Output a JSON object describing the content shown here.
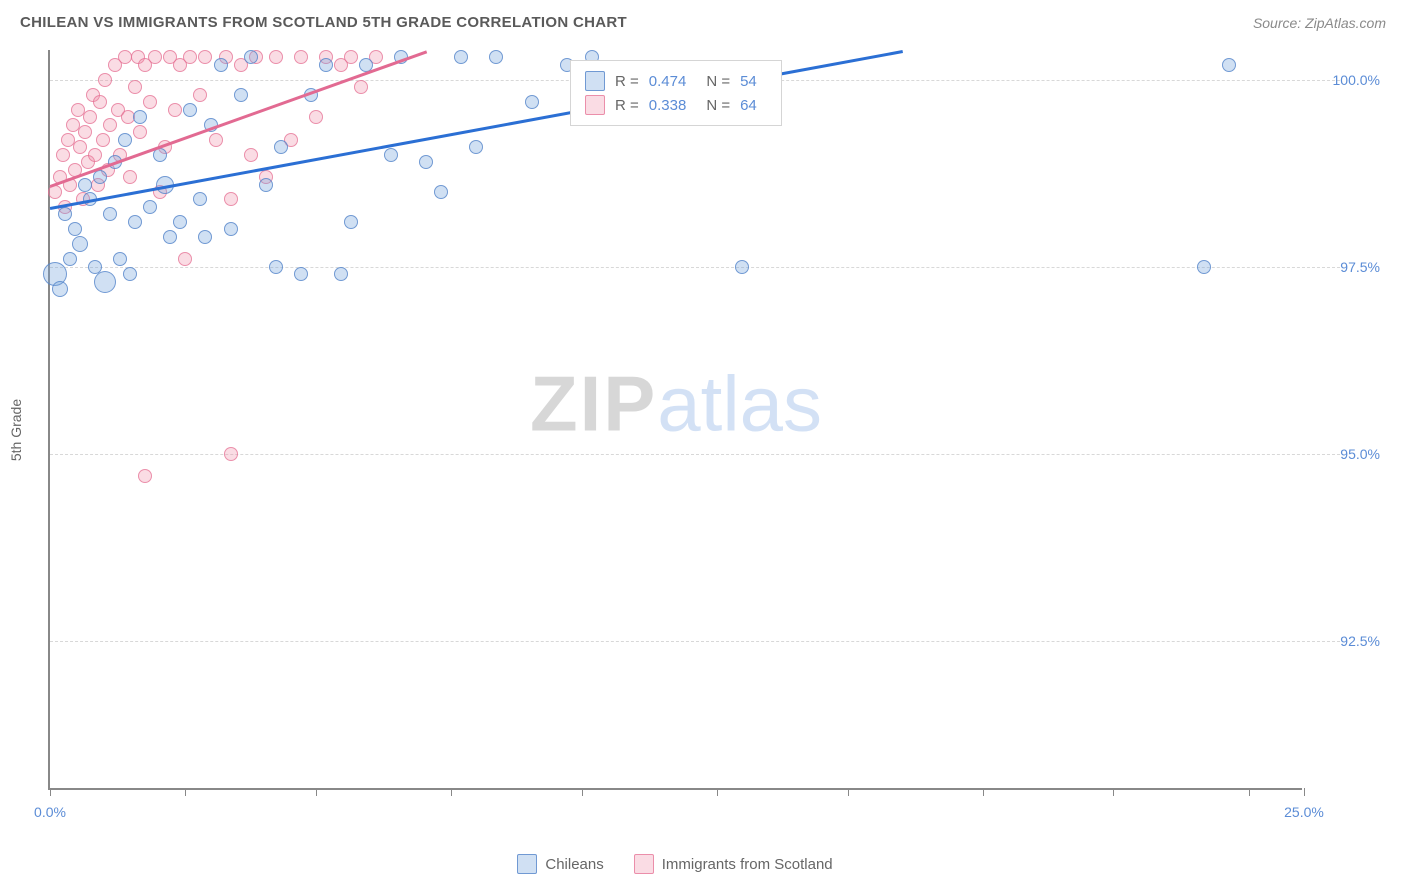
{
  "header": {
    "title": "CHILEAN VS IMMIGRANTS FROM SCOTLAND 5TH GRADE CORRELATION CHART",
    "source_prefix": "Source: ",
    "source_name": "ZipAtlas.com"
  },
  "watermark": {
    "zip": "ZIP",
    "atlas": "atlas"
  },
  "chart": {
    "type": "scatter",
    "ylabel": "5th Grade",
    "background_color": "#ffffff",
    "grid_color": "#d8d8d8",
    "axis_color": "#888888",
    "xlim": [
      0.0,
      25.0
    ],
    "ylim": [
      90.5,
      100.4
    ],
    "ytick_values": [
      92.5,
      95.0,
      97.5,
      100.0
    ],
    "ytick_labels": [
      "92.5%",
      "95.0%",
      "97.5%",
      "100.0%"
    ],
    "xtick_values": [
      0.0,
      2.7,
      5.3,
      8.0,
      10.6,
      13.3,
      15.9,
      18.6,
      21.2,
      23.9,
      25.0
    ],
    "xtick_labels_shown": {
      "0": "0.0%",
      "10": "25.0%"
    },
    "label_color": "#5b8cd6",
    "label_fontsize": 14,
    "series": {
      "blue": {
        "label": "Chileans",
        "fill": "rgba(120,165,220,0.35)",
        "stroke": "rgba(80,130,200,0.75)",
        "trend_color": "#2b6fd4",
        "R": "0.474",
        "N": "54",
        "trend": {
          "x1": 0.0,
          "y1": 98.3,
          "x2": 17.0,
          "y2": 100.4
        },
        "points": [
          {
            "x": 0.1,
            "y": 97.4,
            "r": 12
          },
          {
            "x": 0.2,
            "y": 97.2,
            "r": 8
          },
          {
            "x": 0.3,
            "y": 98.2,
            "r": 7
          },
          {
            "x": 0.4,
            "y": 97.6,
            "r": 7
          },
          {
            "x": 0.5,
            "y": 98.0,
            "r": 7
          },
          {
            "x": 0.6,
            "y": 97.8,
            "r": 8
          },
          {
            "x": 0.7,
            "y": 98.6,
            "r": 7
          },
          {
            "x": 0.8,
            "y": 98.4,
            "r": 7
          },
          {
            "x": 0.9,
            "y": 97.5,
            "r": 7
          },
          {
            "x": 1.0,
            "y": 98.7,
            "r": 7
          },
          {
            "x": 1.1,
            "y": 97.3,
            "r": 11
          },
          {
            "x": 1.2,
            "y": 98.2,
            "r": 7
          },
          {
            "x": 1.3,
            "y": 98.9,
            "r": 7
          },
          {
            "x": 1.4,
            "y": 97.6,
            "r": 7
          },
          {
            "x": 1.5,
            "y": 99.2,
            "r": 7
          },
          {
            "x": 1.6,
            "y": 97.4,
            "r": 7
          },
          {
            "x": 1.7,
            "y": 98.1,
            "r": 7
          },
          {
            "x": 1.8,
            "y": 99.5,
            "r": 7
          },
          {
            "x": 2.0,
            "y": 98.3,
            "r": 7
          },
          {
            "x": 2.2,
            "y": 99.0,
            "r": 7
          },
          {
            "x": 2.3,
            "y": 98.6,
            "r": 9
          },
          {
            "x": 2.4,
            "y": 97.9,
            "r": 7
          },
          {
            "x": 2.6,
            "y": 98.1,
            "r": 7
          },
          {
            "x": 2.8,
            "y": 99.6,
            "r": 7
          },
          {
            "x": 3.0,
            "y": 98.4,
            "r": 7
          },
          {
            "x": 3.1,
            "y": 97.9,
            "r": 7
          },
          {
            "x": 3.2,
            "y": 99.4,
            "r": 7
          },
          {
            "x": 3.4,
            "y": 100.2,
            "r": 7
          },
          {
            "x": 3.6,
            "y": 98.0,
            "r": 7
          },
          {
            "x": 3.8,
            "y": 99.8,
            "r": 7
          },
          {
            "x": 4.0,
            "y": 100.3,
            "r": 7
          },
          {
            "x": 4.3,
            "y": 98.6,
            "r": 7
          },
          {
            "x": 4.5,
            "y": 97.5,
            "r": 7
          },
          {
            "x": 4.6,
            "y": 99.1,
            "r": 7
          },
          {
            "x": 5.0,
            "y": 97.4,
            "r": 7
          },
          {
            "x": 5.2,
            "y": 99.8,
            "r": 7
          },
          {
            "x": 5.5,
            "y": 100.2,
            "r": 7
          },
          {
            "x": 5.8,
            "y": 97.4,
            "r": 7
          },
          {
            "x": 6.0,
            "y": 98.1,
            "r": 7
          },
          {
            "x": 6.3,
            "y": 100.2,
            "r": 7
          },
          {
            "x": 6.8,
            "y": 99.0,
            "r": 7
          },
          {
            "x": 7.0,
            "y": 100.3,
            "r": 7
          },
          {
            "x": 7.5,
            "y": 98.9,
            "r": 7
          },
          {
            "x": 7.8,
            "y": 98.5,
            "r": 7
          },
          {
            "x": 8.2,
            "y": 100.3,
            "r": 7
          },
          {
            "x": 8.5,
            "y": 99.1,
            "r": 7
          },
          {
            "x": 8.9,
            "y": 100.3,
            "r": 7
          },
          {
            "x": 9.6,
            "y": 99.7,
            "r": 7
          },
          {
            "x": 10.3,
            "y": 100.2,
            "r": 7
          },
          {
            "x": 10.8,
            "y": 100.3,
            "r": 7
          },
          {
            "x": 13.8,
            "y": 97.5,
            "r": 7
          },
          {
            "x": 23.0,
            "y": 97.5,
            "r": 7
          },
          {
            "x": 23.5,
            "y": 100.2,
            "r": 7
          }
        ]
      },
      "pink": {
        "label": "Immigrants from Scotland",
        "fill": "rgba(240,140,165,0.3)",
        "stroke": "rgba(230,110,145,0.7)",
        "trend_color": "#e26a92",
        "R": "0.338",
        "N": "64",
        "trend": {
          "x1": 0.0,
          "y1": 98.6,
          "x2": 7.5,
          "y2": 100.4
        },
        "points": [
          {
            "x": 0.1,
            "y": 98.5,
            "r": 7
          },
          {
            "x": 0.2,
            "y": 98.7,
            "r": 7
          },
          {
            "x": 0.25,
            "y": 99.0,
            "r": 7
          },
          {
            "x": 0.3,
            "y": 98.3,
            "r": 7
          },
          {
            "x": 0.35,
            "y": 99.2,
            "r": 7
          },
          {
            "x": 0.4,
            "y": 98.6,
            "r": 7
          },
          {
            "x": 0.45,
            "y": 99.4,
            "r": 7
          },
          {
            "x": 0.5,
            "y": 98.8,
            "r": 7
          },
          {
            "x": 0.55,
            "y": 99.6,
            "r": 7
          },
          {
            "x": 0.6,
            "y": 99.1,
            "r": 7
          },
          {
            "x": 0.65,
            "y": 98.4,
            "r": 7
          },
          {
            "x": 0.7,
            "y": 99.3,
            "r": 7
          },
          {
            "x": 0.75,
            "y": 98.9,
            "r": 7
          },
          {
            "x": 0.8,
            "y": 99.5,
            "r": 7
          },
          {
            "x": 0.85,
            "y": 99.8,
            "r": 7
          },
          {
            "x": 0.9,
            "y": 99.0,
            "r": 7
          },
          {
            "x": 0.95,
            "y": 98.6,
            "r": 7
          },
          {
            "x": 1.0,
            "y": 99.7,
            "r": 7
          },
          {
            "x": 1.05,
            "y": 99.2,
            "r": 7
          },
          {
            "x": 1.1,
            "y": 100.0,
            "r": 7
          },
          {
            "x": 1.15,
            "y": 98.8,
            "r": 7
          },
          {
            "x": 1.2,
            "y": 99.4,
            "r": 7
          },
          {
            "x": 1.3,
            "y": 100.2,
            "r": 7
          },
          {
            "x": 1.35,
            "y": 99.6,
            "r": 7
          },
          {
            "x": 1.4,
            "y": 99.0,
            "r": 7
          },
          {
            "x": 1.5,
            "y": 100.3,
            "r": 7
          },
          {
            "x": 1.55,
            "y": 99.5,
            "r": 7
          },
          {
            "x": 1.6,
            "y": 98.7,
            "r": 7
          },
          {
            "x": 1.7,
            "y": 99.9,
            "r": 7
          },
          {
            "x": 1.75,
            "y": 100.3,
            "r": 7
          },
          {
            "x": 1.8,
            "y": 99.3,
            "r": 7
          },
          {
            "x": 1.9,
            "y": 100.2,
            "r": 7
          },
          {
            "x": 2.0,
            "y": 99.7,
            "r": 7
          },
          {
            "x": 2.1,
            "y": 100.3,
            "r": 7
          },
          {
            "x": 2.2,
            "y": 98.5,
            "r": 7
          },
          {
            "x": 2.3,
            "y": 99.1,
            "r": 7
          },
          {
            "x": 2.4,
            "y": 100.3,
            "r": 7
          },
          {
            "x": 2.5,
            "y": 99.6,
            "r": 7
          },
          {
            "x": 2.6,
            "y": 100.2,
            "r": 7
          },
          {
            "x": 2.7,
            "y": 97.6,
            "r": 7
          },
          {
            "x": 2.8,
            "y": 100.3,
            "r": 7
          },
          {
            "x": 3.0,
            "y": 99.8,
            "r": 7
          },
          {
            "x": 3.1,
            "y": 100.3,
            "r": 7
          },
          {
            "x": 3.3,
            "y": 99.2,
            "r": 7
          },
          {
            "x": 3.5,
            "y": 100.3,
            "r": 7
          },
          {
            "x": 3.6,
            "y": 98.4,
            "r": 7
          },
          {
            "x": 3.8,
            "y": 100.2,
            "r": 7
          },
          {
            "x": 4.0,
            "y": 99.0,
            "r": 7
          },
          {
            "x": 4.1,
            "y": 100.3,
            "r": 7
          },
          {
            "x": 4.3,
            "y": 98.7,
            "r": 7
          },
          {
            "x": 4.5,
            "y": 100.3,
            "r": 7
          },
          {
            "x": 4.8,
            "y": 99.2,
            "r": 7
          },
          {
            "x": 5.0,
            "y": 100.3,
            "r": 7
          },
          {
            "x": 5.3,
            "y": 99.5,
            "r": 7
          },
          {
            "x": 5.5,
            "y": 100.3,
            "r": 7
          },
          {
            "x": 5.8,
            "y": 100.2,
            "r": 7
          },
          {
            "x": 6.0,
            "y": 100.3,
            "r": 7
          },
          {
            "x": 6.2,
            "y": 99.9,
            "r": 7
          },
          {
            "x": 6.5,
            "y": 100.3,
            "r": 7
          },
          {
            "x": 1.9,
            "y": 94.7,
            "r": 7
          },
          {
            "x": 3.6,
            "y": 95.0,
            "r": 7
          }
        ]
      }
    },
    "stats_box": {
      "r_label": "R =",
      "n_label": "N ="
    }
  },
  "legend": {
    "items": [
      {
        "key": "blue",
        "label": "Chileans"
      },
      {
        "key": "pink",
        "label": "Immigrants from Scotland"
      }
    ]
  }
}
